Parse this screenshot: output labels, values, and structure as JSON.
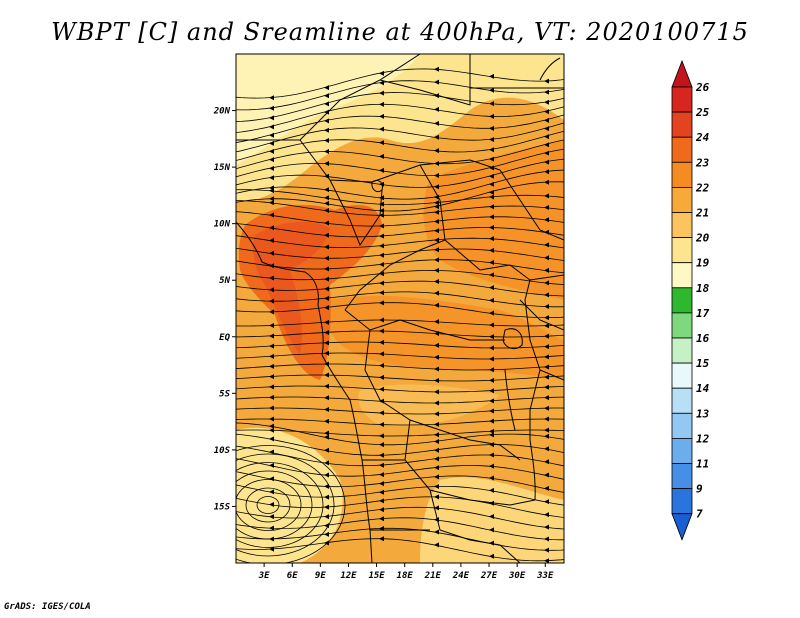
{
  "title": "WBPT [C] and Sreamline at 400hPa, VT: 2020100715",
  "footer": "GrADS: IGES/COLA",
  "map": {
    "lon_range": [
      0,
      35
    ],
    "lat_range": [
      -20,
      25
    ],
    "x_ticks": [
      "3E",
      "6E",
      "9E",
      "12E",
      "15E",
      "18E",
      "21E",
      "24E",
      "27E",
      "30E",
      "33E"
    ],
    "x_tick_values": [
      3,
      6,
      9,
      12,
      15,
      18,
      21,
      24,
      27,
      30,
      33
    ],
    "y_ticks": [
      "20N",
      "15N",
      "10N",
      "5N",
      "EQ",
      "5S",
      "10S",
      "15S"
    ],
    "y_tick_values": [
      20,
      15,
      10,
      5,
      0,
      -5,
      -10,
      -15
    ],
    "fill_base_color": "#f4a93c",
    "fill_dominant_class": "21-22"
  },
  "colorbar": {
    "labels": [
      "26",
      "25",
      "24",
      "23",
      "22",
      "21",
      "20",
      "19",
      "18",
      "17",
      "16",
      "15",
      "14",
      "13",
      "12",
      "11",
      "9",
      "7"
    ],
    "colors": [
      "#c3141c",
      "#d7251f",
      "#e3431f",
      "#f06a1c",
      "#f58c21",
      "#f7a93a",
      "#fbc45e",
      "#fde48f",
      "#fef8c4",
      "#2eb82e",
      "#7ed87e",
      "#c6f0c6",
      "#e9f8fb",
      "#b7e0f7",
      "#92c8f2",
      "#6aaeec",
      "#4590e6",
      "#2a74de",
      "#185fd6"
    ]
  }
}
